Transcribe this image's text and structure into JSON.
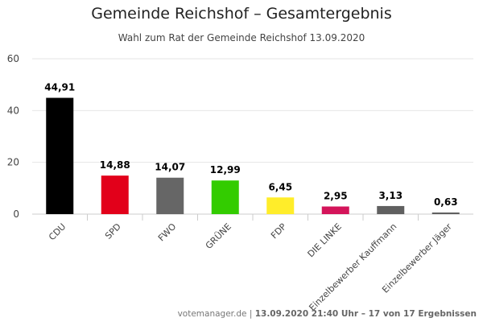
{
  "chart_data": {
    "type": "bar",
    "title": "Gemeinde Reichshof – Gesamtergebnis",
    "subtitle": "Wahl zum Rat der Gemeinde Reichshof 13.09.2020",
    "xlabel": "",
    "ylabel": "",
    "ylim": [
      0,
      60
    ],
    "yticks": [
      0,
      20,
      40,
      60
    ],
    "grid": true,
    "legend": "none",
    "categories": [
      "CDU",
      "SPD",
      "FWO",
      "GRÜNE",
      "FDP",
      "DIE LINKE",
      "Einzelbewerber Kauffmann",
      "Einzelbewerber Jäger"
    ],
    "values": [
      44.91,
      14.88,
      14.07,
      12.99,
      6.45,
      2.95,
      3.13,
      0.63
    ],
    "value_labels": [
      "44,91",
      "14,88",
      "14,07",
      "12,99",
      "6,45",
      "2,95",
      "3,13",
      "0,63"
    ],
    "colors": [
      "#000000",
      "#e2001a",
      "#666666",
      "#33cc00",
      "#ffed2a",
      "#d4145a",
      "#606060",
      "#606060"
    ]
  },
  "footer": {
    "source": "votemanager.de",
    "separator": " | ",
    "info": "13.09.2020 21:40 Uhr – 17 von 17 Ergebnissen"
  }
}
